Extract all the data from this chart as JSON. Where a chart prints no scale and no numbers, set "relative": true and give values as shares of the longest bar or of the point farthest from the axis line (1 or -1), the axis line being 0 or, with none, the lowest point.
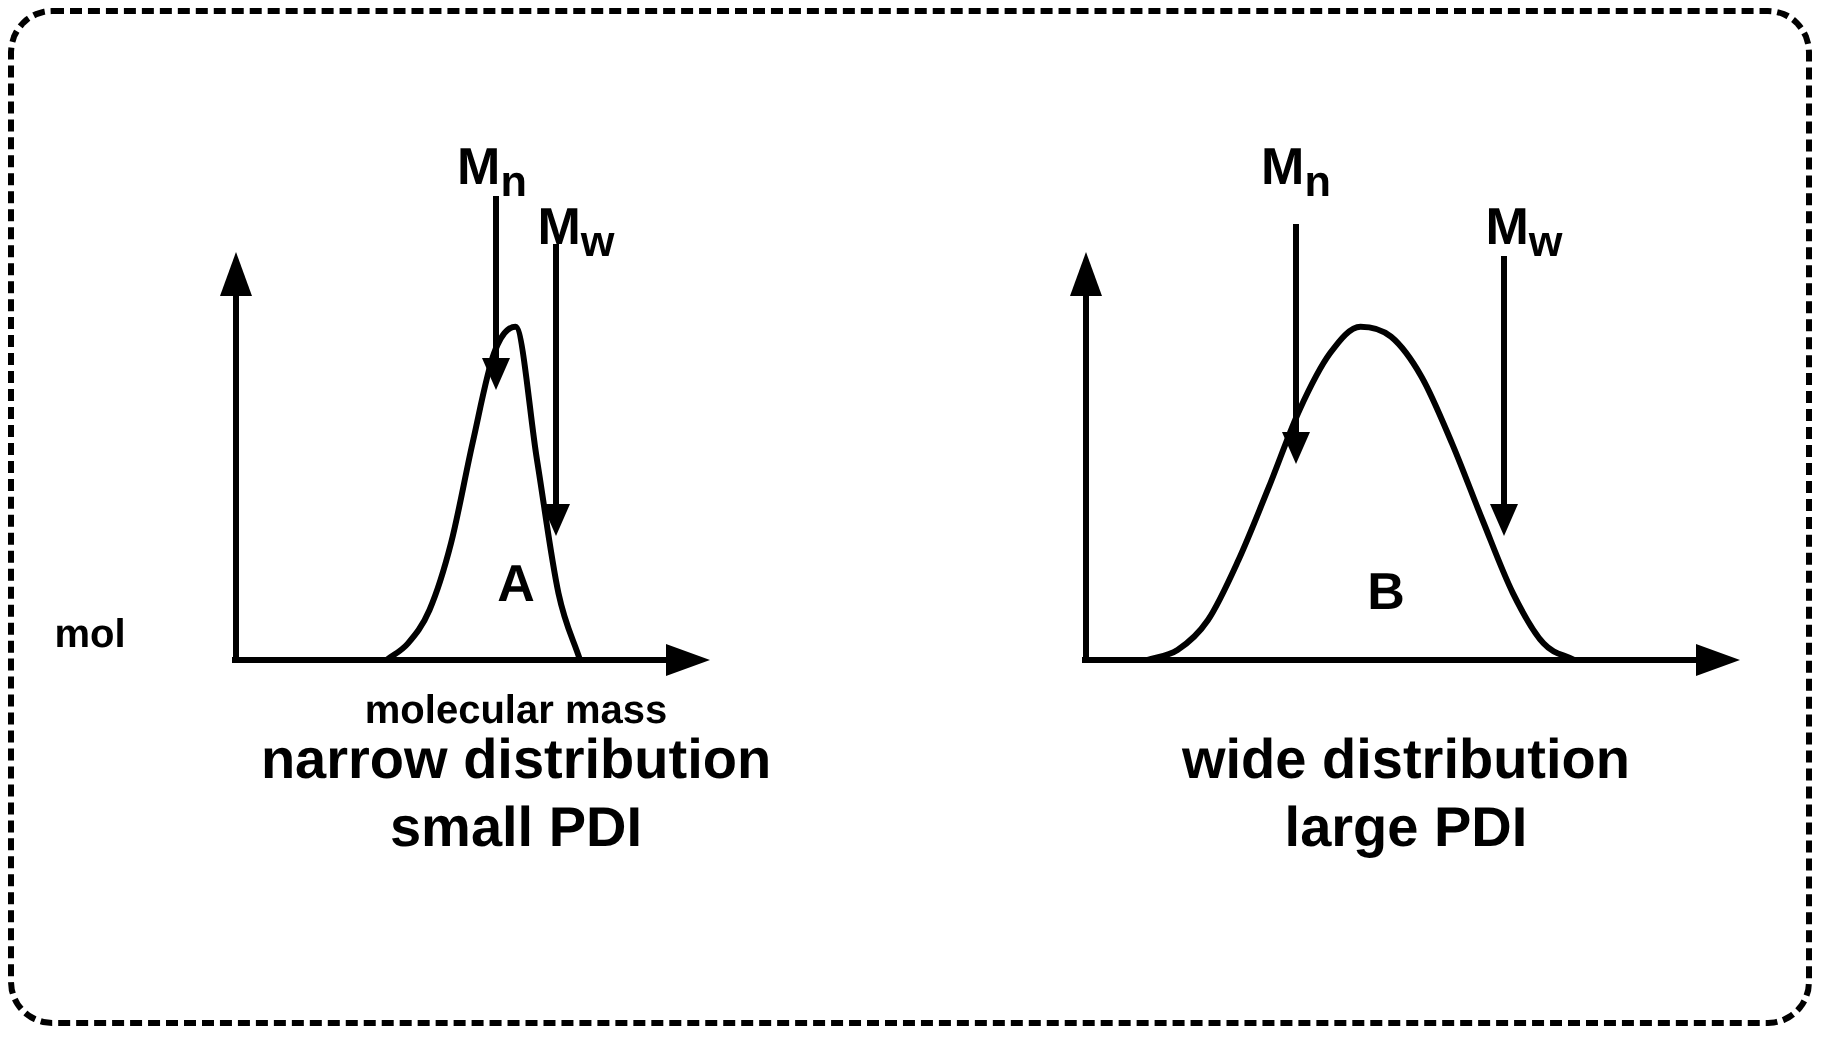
{
  "chart_data": [
    {
      "type": "line",
      "relative": true,
      "title": "narrow distribution",
      "subtitle": "small PDI",
      "xlabel": "molecular mass",
      "ylabel": "mol",
      "annotations": [
        "M$_{n}$",
        "M$_{w}$",
        "A"
      ],
      "categories": [
        null,
        null,
        null,
        null,
        null,
        null,
        null,
        null,
        null,
        null,
        null,
        null,
        null,
        null,
        null,
        null,
        null,
        null,
        null,
        null,
        null
      ],
      "values": [
        null,
        null,
        null,
        null,
        null,
        null,
        null,
        0,
        0.05,
        0.15,
        0.35,
        0.65,
        0.92,
        1,
        0.6,
        0.2,
        0,
        null,
        null,
        null,
        null
      ],
      "color": "#000000",
      "marker": "none",
      "line_style": "solid",
      "legend": false,
      "grid": false,
      "tick_labels": false
    },
    {
      "type": "line",
      "relative": true,
      "title": "wide distribution",
      "subtitle": "large PDI",
      "annotations": [
        "M$_{n}$",
        "M$_{w}$",
        "B"
      ],
      "categories": [
        null,
        null,
        null,
        null,
        null,
        null,
        null,
        null,
        null,
        null,
        null,
        null,
        null,
        null,
        null,
        null,
        null,
        null,
        null,
        null,
        null
      ],
      "values": [
        null,
        null,
        0,
        0.03,
        0.12,
        0.3,
        0.52,
        0.75,
        0.92,
        1,
        0.97,
        0.85,
        0.65,
        0.42,
        0.2,
        0.05,
        0,
        null,
        null,
        null,
        null
      ],
      "color": "#000000",
      "marker": "none",
      "line_style": "solid",
      "legend": false,
      "grid": false,
      "tick_labels": false
    }
  ]
}
